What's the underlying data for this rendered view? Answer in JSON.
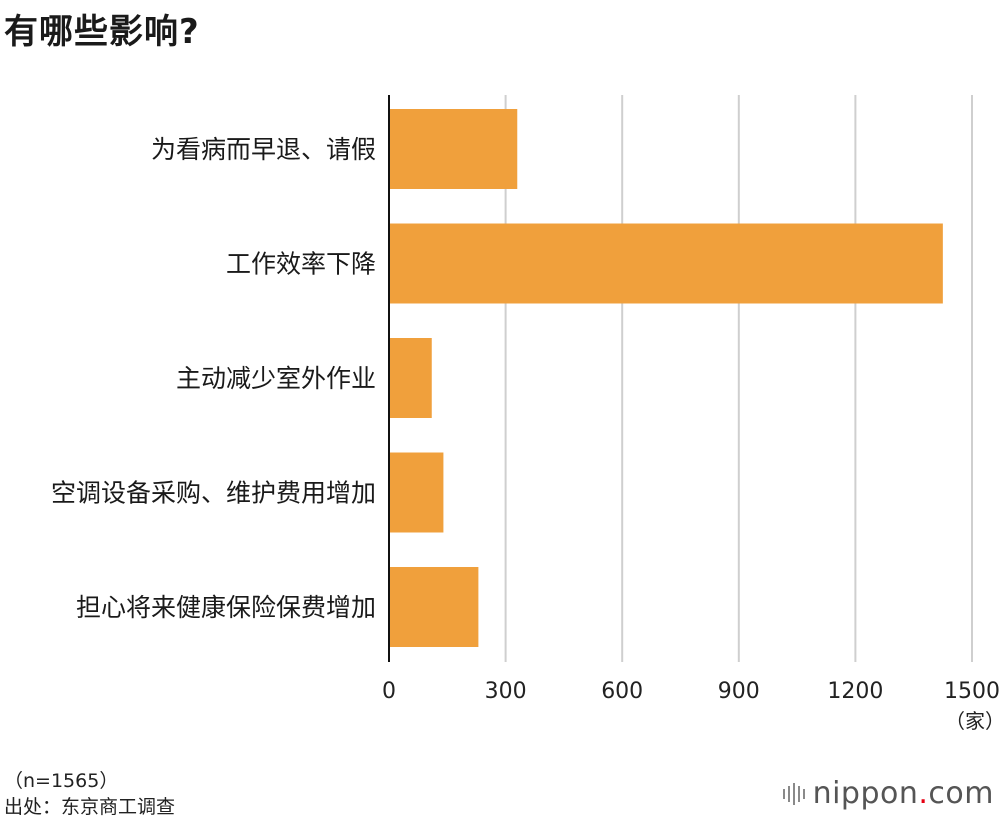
{
  "title": "有哪些影响?",
  "chart_data": {
    "type": "bar",
    "orientation": "horizontal",
    "categories": [
      "为看病而早退、请假",
      "工作效率下降",
      "主动减少室外作业",
      "空调设备采购、维护费用增加",
      "担心将来健康保险保费增加"
    ],
    "values": [
      330,
      1425,
      110,
      140,
      230
    ],
    "xlim": [
      0,
      1500
    ],
    "xticks": [
      "0",
      "300",
      "600",
      "900",
      "1200",
      "1500"
    ],
    "xunit": "（家）",
    "bar_color": "#f0a03c",
    "grid": true
  },
  "notes": {
    "n": "（n=1565）",
    "source": "出处：东京商工调查"
  },
  "logo": {
    "name": "nippon",
    "dot": ".",
    "suffix": "com"
  }
}
